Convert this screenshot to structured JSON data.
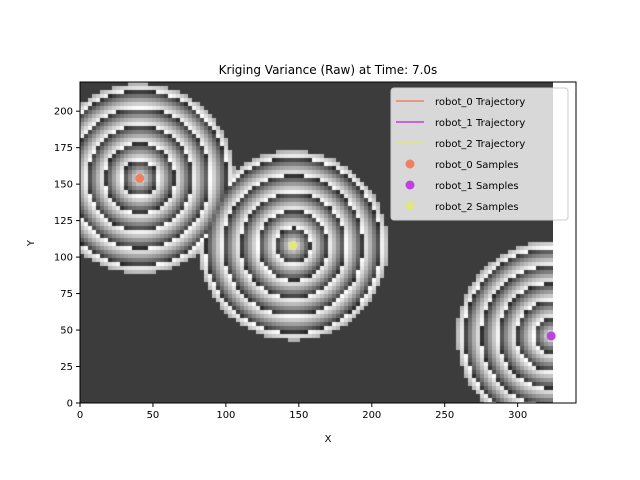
{
  "chart_data": {
    "type": "heatmap",
    "title": "Kriging Variance (Raw) at Time: 7.0s",
    "xlabel": "X",
    "ylabel": "Y",
    "xlim": [
      0,
      340
    ],
    "ylim": [
      0,
      220
    ],
    "field_extent": {
      "x": [
        0,
        324
      ],
      "y": [
        0,
        220
      ]
    },
    "x_ticks": [
      0,
      50,
      100,
      150,
      200,
      250,
      300
    ],
    "y_ticks": [
      0,
      25,
      50,
      75,
      100,
      125,
      150,
      175,
      200
    ],
    "colormap": "gray",
    "grid": false,
    "legend_position": "top-right",
    "samples": [
      {
        "robot": "robot_0",
        "x": 41,
        "y": 154,
        "color": "#f08060"
      },
      {
        "robot": "robot_1",
        "x": 323,
        "y": 46,
        "color": "#c040e0"
      },
      {
        "robot": "robot_2",
        "x": 146,
        "y": 108,
        "color": "#e0e680"
      }
    ],
    "legend": [
      {
        "label": "robot_0 Trajectory",
        "kind": "line",
        "color": "#f08060"
      },
      {
        "label": "robot_1 Trajectory",
        "kind": "line",
        "color": "#c040e0"
      },
      {
        "label": "robot_2 Trajectory",
        "kind": "line",
        "color": "#e0e680"
      },
      {
        "label": "robot_0 Samples",
        "kind": "marker",
        "color": "#f08060"
      },
      {
        "label": "robot_1 Samples",
        "kind": "marker",
        "color": "#c040e0"
      },
      {
        "label": "robot_2 Samples",
        "kind": "marker",
        "color": "#e0e680"
      }
    ]
  }
}
